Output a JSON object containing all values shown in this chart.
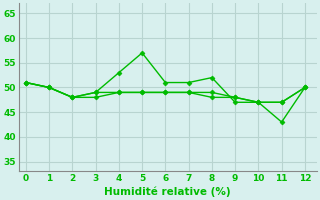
{
  "line1": [
    51,
    50,
    48,
    49,
    53,
    57,
    51,
    51,
    52,
    47,
    47,
    43,
    50
  ],
  "line2": [
    51,
    50,
    48,
    49,
    49,
    49,
    49,
    49,
    49,
    48,
    47,
    47,
    50
  ],
  "line3": [
    51,
    50,
    48,
    48,
    49,
    49,
    49,
    49,
    48,
    48,
    47,
    47,
    50
  ],
  "x": [
    0,
    1,
    2,
    3,
    4,
    5,
    6,
    7,
    8,
    9,
    10,
    11,
    12
  ],
  "xlim": [
    -0.3,
    12.5
  ],
  "ylim": [
    33,
    67
  ],
  "yticks": [
    35,
    40,
    45,
    50,
    55,
    60,
    65
  ],
  "xticks": [
    0,
    1,
    2,
    3,
    4,
    5,
    6,
    7,
    8,
    9,
    10,
    11,
    12
  ],
  "xlabel": "Humidité relative (%)",
  "line_color": "#00bb00",
  "bg_color": "#d8f0ee",
  "grid_color": "#b8d4d0",
  "marker": "D",
  "marker_size": 2.5,
  "linewidth": 1.0,
  "xlabel_fontsize": 7.5,
  "tick_fontsize": 6.5
}
